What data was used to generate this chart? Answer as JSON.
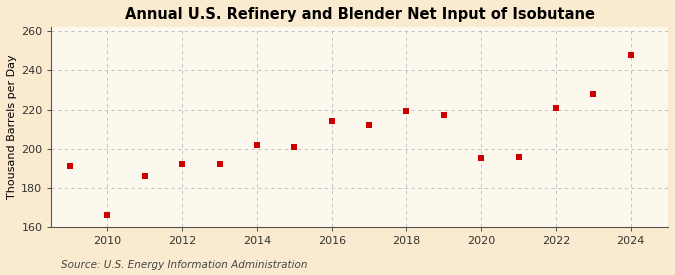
{
  "title": "Annual U.S. Refinery and Blender Net Input of Isobutane",
  "ylabel": "Thousand Barrels per Day",
  "source": "Source: U.S. Energy Information Administration",
  "years": [
    2009,
    2010,
    2011,
    2012,
    2013,
    2014,
    2015,
    2016,
    2017,
    2018,
    2019,
    2020,
    2021,
    2022,
    2023,
    2024
  ],
  "values": [
    191,
    166,
    186,
    192,
    192,
    202,
    201,
    214,
    212,
    219,
    217,
    195,
    196,
    221,
    228,
    248
  ],
  "marker_color": "#cc0000",
  "marker": "s",
  "marker_size": 4,
  "ylim": [
    160,
    262
  ],
  "yticks": [
    160,
    180,
    200,
    220,
    240,
    260
  ],
  "xticks": [
    2010,
    2012,
    2014,
    2016,
    2018,
    2020,
    2022,
    2024
  ],
  "xlim": [
    2008.5,
    2025.0
  ],
  "fig_bg_color": "#faebd0",
  "plot_bg_color": "#fdf8ee",
  "grid_color": "#bbbbbb",
  "title_fontsize": 10.5,
  "label_fontsize": 8,
  "tick_fontsize": 8,
  "source_fontsize": 7.5
}
